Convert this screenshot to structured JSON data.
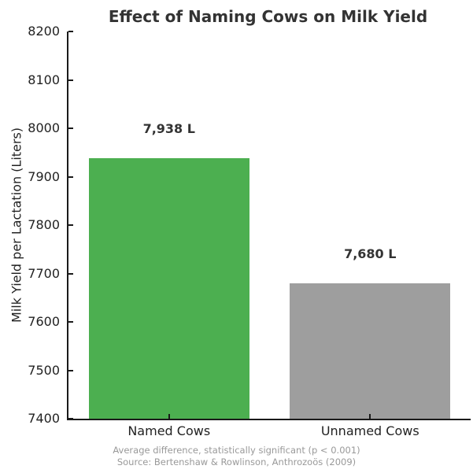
{
  "chart_data": {
    "type": "bar",
    "title": "Effect of Naming Cows on Milk Yield",
    "categories": [
      "Named Cows",
      "Unnamed Cows"
    ],
    "values": [
      7938,
      7680
    ],
    "value_labels": [
      "7,938 L",
      "7,680 L"
    ],
    "bar_colors": [
      "#4caf50",
      "#9e9e9e"
    ],
    "xlabel": "",
    "ylabel": "Milk Yield per Lactation (Liters)",
    "ylim": [
      7400,
      8200
    ],
    "yticks": [
      7400,
      7500,
      7600,
      7700,
      7800,
      7900,
      8000,
      8100,
      8200
    ],
    "grid": false,
    "legend_position": "none",
    "bar_width_fraction": 0.8,
    "tick_direction": "in",
    "annotations": [
      "Average difference, statistically significant (p < 0.001)",
      "Source: Bertenshaw & Rowlinson, Anthrozoös (2009)"
    ],
    "colors": {
      "title_text": "#333333",
      "axis_text": "#222222",
      "spine": "#1a1a1a",
      "footnote_text": "#999999",
      "background": "#ffffff"
    }
  }
}
